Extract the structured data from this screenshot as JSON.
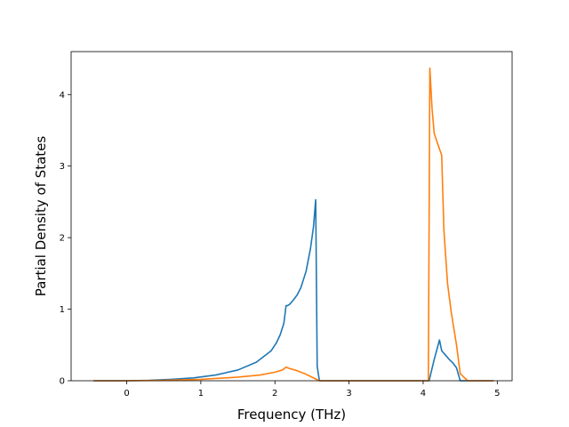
{
  "chart_data": {
    "type": "line",
    "title": "",
    "xlabel": "Frequency (THz)",
    "ylabel": "Partial Density of States",
    "xlim": [
      -0.75,
      5.2
    ],
    "ylim": [
      0,
      4.6
    ],
    "xticks": [
      0,
      1,
      2,
      3,
      4,
      5
    ],
    "yticks": [
      0,
      1,
      2,
      3,
      4
    ],
    "grid": false,
    "legend": "none",
    "series": [
      {
        "color": "#1f77b4",
        "x": [
          -0.45,
          0.0,
          0.3,
          0.6,
          0.9,
          1.2,
          1.5,
          1.75,
          1.95,
          2.02,
          2.07,
          2.12,
          2.15,
          2.17,
          2.2,
          2.25,
          2.3,
          2.35,
          2.42,
          2.48,
          2.52,
          2.55,
          2.57,
          2.6,
          2.65,
          3.0,
          3.5,
          4.0,
          4.08,
          4.15,
          4.22,
          4.25,
          4.3,
          4.35,
          4.4,
          4.45,
          4.5,
          4.6,
          4.95
        ],
        "y": [
          0.0,
          0.0,
          0.005,
          0.02,
          0.04,
          0.08,
          0.15,
          0.26,
          0.42,
          0.53,
          0.64,
          0.8,
          1.05,
          1.05,
          1.07,
          1.13,
          1.2,
          1.3,
          1.53,
          1.85,
          2.15,
          2.53,
          0.2,
          0.0,
          0.0,
          0.0,
          0.0,
          0.0,
          0.0,
          0.3,
          0.57,
          0.42,
          0.36,
          0.3,
          0.25,
          0.18,
          0.0,
          0.0,
          0.0
        ]
      },
      {
        "color": "#ff7f0e",
        "x": [
          -0.45,
          0.0,
          0.5,
          1.0,
          1.5,
          1.8,
          2.0,
          2.1,
          2.15,
          2.2,
          2.3,
          2.4,
          2.5,
          2.6,
          3.0,
          3.5,
          4.0,
          4.07,
          4.09,
          4.12,
          4.15,
          4.2,
          4.25,
          4.28,
          4.33,
          4.38,
          4.45,
          4.5,
          4.6,
          4.95
        ],
        "y": [
          0.0,
          0.0,
          0.005,
          0.02,
          0.05,
          0.08,
          0.12,
          0.15,
          0.19,
          0.17,
          0.14,
          0.1,
          0.05,
          0.0,
          0.0,
          0.0,
          0.0,
          0.0,
          4.37,
          3.8,
          3.45,
          3.3,
          3.15,
          2.1,
          1.35,
          0.95,
          0.5,
          0.1,
          0.0,
          0.0
        ]
      }
    ]
  }
}
